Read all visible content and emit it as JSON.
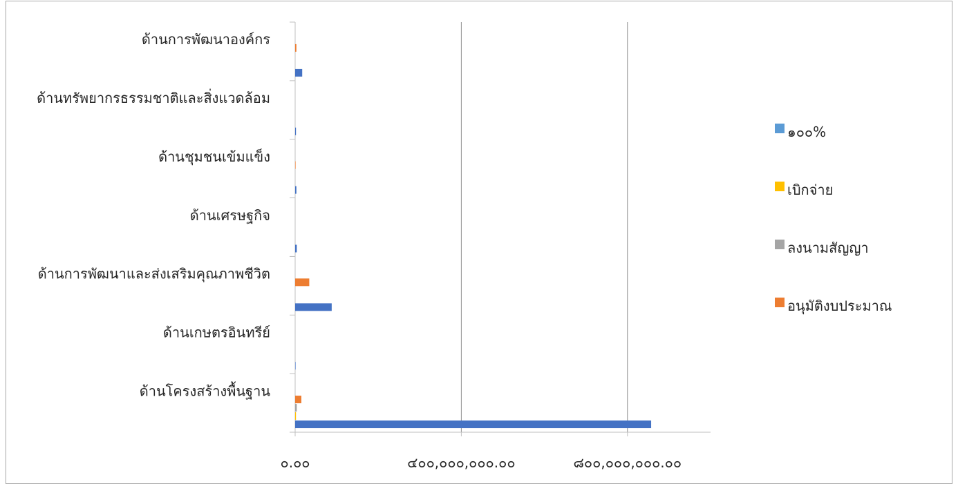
{
  "chart_data": {
    "type": "bar",
    "orientation": "horizontal",
    "title": "",
    "categories": [
      "ด้านการพัฒนาองค์กร",
      "ด้านทรัพยากรธรรมชาติและสิ่งแวดล้อม",
      "ด้านชุมชนเข้มแข็ง",
      "ด้านเศรษฐกิจ",
      "ด้านการพัฒนาและส่งเสริมคุณภาพชีวิต",
      "ด้านเกษตรอินทรีย์",
      "ด้านโครงสร้างพื้นฐาน"
    ],
    "series": [
      {
        "name": "๑๐๐%",
        "color": "#4472c4",
        "values": [
          17000000,
          2000000,
          3000000,
          4000000,
          88000000,
          1000000,
          857000000
        ]
      },
      {
        "name": "เบิกจ่าย",
        "color": "#ffc000",
        "values": [
          0,
          0,
          0,
          0,
          0,
          0,
          2000000
        ]
      },
      {
        "name": "ลงนามสัญญา",
        "color": "#a5a5a5",
        "values": [
          0,
          0,
          0,
          0,
          0,
          0,
          4000000
        ]
      },
      {
        "name": "อนุมัติงบประมาณ",
        "color": "#ed7d31",
        "values": [
          3000000,
          0,
          1000000,
          0,
          34000000,
          0,
          15000000
        ]
      }
    ],
    "legend_series_extra": {
      "๑๐๐%_lightbar": "#5b9bd5"
    },
    "xlim": [
      0,
      1000000000
    ],
    "xticks": [
      0,
      400000000,
      800000000
    ],
    "xtick_labels": [
      "๐.๐๐",
      "๔๐๐,๐๐๐,๐๐๐.๐๐",
      "๘๐๐,๐๐๐,๐๐๐.๐๐"
    ],
    "grid": true,
    "legend_position": "right",
    "legend_order": [
      "๑๐๐%",
      "เบิกจ่าย",
      "ลงนามสัญญา",
      "อนุมัติงบประมาณ"
    ],
    "legend_colors": [
      "#5b9bd5",
      "#ffc000",
      "#a5a5a5",
      "#ed7d31"
    ]
  }
}
